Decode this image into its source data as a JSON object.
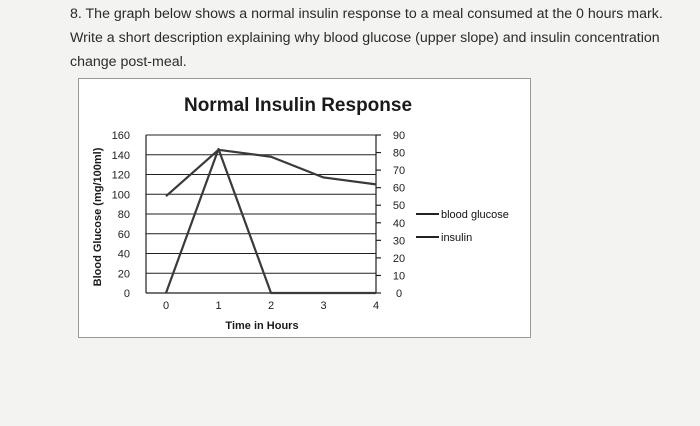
{
  "question": {
    "text": "8. The graph below shows a normal insulin response to a meal consumed at the 0 hours mark.  Write a short description explaining why blood glucose (upper slope) and insulin concentration change post-meal."
  },
  "chart_data": {
    "type": "line",
    "title": "Normal Insulin Response",
    "xlabel": "Time in Hours",
    "ylabel": "Blood Glucose (mg/100ml)",
    "x_ticks": [
      "0",
      "1",
      "2",
      "3",
      "4"
    ],
    "xlim": [
      0,
      4
    ],
    "ylim": [
      0,
      160
    ],
    "y_ticks": [
      "160",
      "140",
      "120",
      "100",
      "80",
      "60",
      "40",
      "20",
      "0"
    ],
    "y2lim": [
      0,
      90
    ],
    "y2_ticks": [
      "90",
      "80",
      "70",
      "60",
      "50",
      "40",
      "30",
      "20",
      "10",
      "0"
    ],
    "grid": true,
    "legend_position": "right",
    "series": [
      {
        "name": "blood glucose",
        "axis": "left",
        "color": "#3a3a3a",
        "x": [
          0,
          1,
          2,
          3,
          4
        ],
        "y": [
          98,
          145,
          138,
          117,
          110
        ]
      },
      {
        "name": "insulin",
        "axis": "right",
        "color": "#3a3a3a",
        "x": [
          0,
          1,
          2,
          3,
          4
        ],
        "y": [
          0,
          82,
          0,
          0,
          0
        ]
      }
    ]
  }
}
